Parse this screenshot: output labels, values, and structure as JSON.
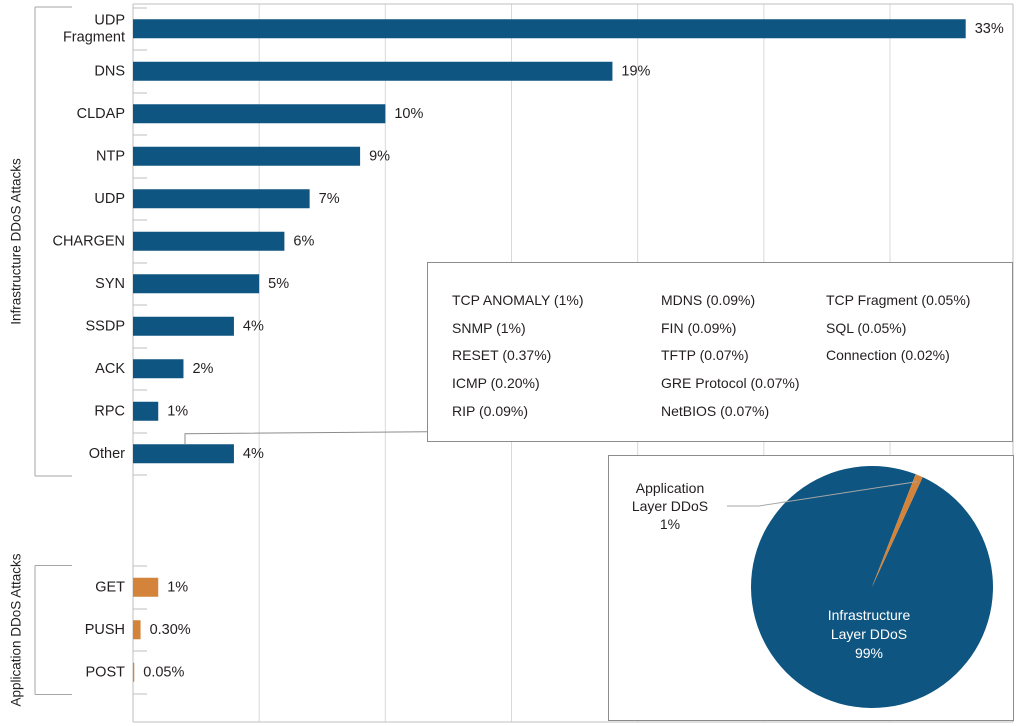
{
  "chart_data": [
    {
      "type": "bar",
      "orientation": "horizontal",
      "groups": [
        {
          "name": "Infrastructure DDoS Attacks",
          "color": "#0f5581",
          "categories": [
            "UDP Fragment",
            "DNS",
            "CLDAP",
            "NTP",
            "UDP",
            "CHARGEN",
            "SYN",
            "SSDP",
            "ACK",
            "RPC",
            "Other"
          ],
          "category_lines": [
            [
              "UDP",
              "Fragment"
            ],
            [
              "DNS"
            ],
            [
              "CLDAP"
            ],
            [
              "NTP"
            ],
            [
              "UDP"
            ],
            [
              "CHARGEN"
            ],
            [
              "SYN"
            ],
            [
              "SSDP"
            ],
            [
              "ACK"
            ],
            [
              "RPC"
            ],
            [
              "Other"
            ]
          ],
          "values": [
            33,
            19,
            10,
            9,
            7,
            6,
            5,
            4,
            2,
            1,
            4
          ],
          "value_labels": [
            "33%",
            "19%",
            "10%",
            "9%",
            "7%",
            "6%",
            "5%",
            "4%",
            "2%",
            "1%",
            "4%"
          ]
        },
        {
          "name": "Application DDoS Attacks",
          "color": "#d4843a",
          "categories": [
            "GET",
            "PUSH",
            "POST"
          ],
          "category_lines": [
            [
              "GET"
            ],
            [
              "PUSH"
            ],
            [
              "POST"
            ]
          ],
          "values": [
            1,
            0.3,
            0.05
          ],
          "value_labels": [
            "1%",
            "0.30%",
            "0.05%"
          ]
        }
      ],
      "xlim": [
        0,
        35
      ],
      "grid": true,
      "title": "",
      "xlabel": "",
      "ylabel": ""
    },
    {
      "type": "pie",
      "slices": [
        {
          "label_lines": [
            "Infrastructure",
            "Layer DDoS",
            "99%"
          ],
          "value": 99,
          "color": "#0f5581",
          "text_color": "#ffffff"
        },
        {
          "label_lines": [
            "Application",
            "Layer DDoS",
            "1%"
          ],
          "value": 1,
          "color": "#d4843a",
          "text_color": "#231f20"
        }
      ]
    }
  ],
  "other_breakdown": {
    "columns": [
      [
        "TCP ANOMALY (1%)",
        "SNMP (1%)",
        "RESET (0.37%)",
        "ICMP (0.20%)",
        "RIP (0.09%)"
      ],
      [
        "MDNS (0.09%)",
        "FIN (0.09%)",
        "TFTP (0.07%)",
        "GRE Protocol (0.07%)",
        "NetBIOS (0.07%)"
      ],
      [
        "TCP Fragment (0.05%)",
        "SQL (0.05%)",
        "Connection (0.02%)"
      ]
    ]
  }
}
